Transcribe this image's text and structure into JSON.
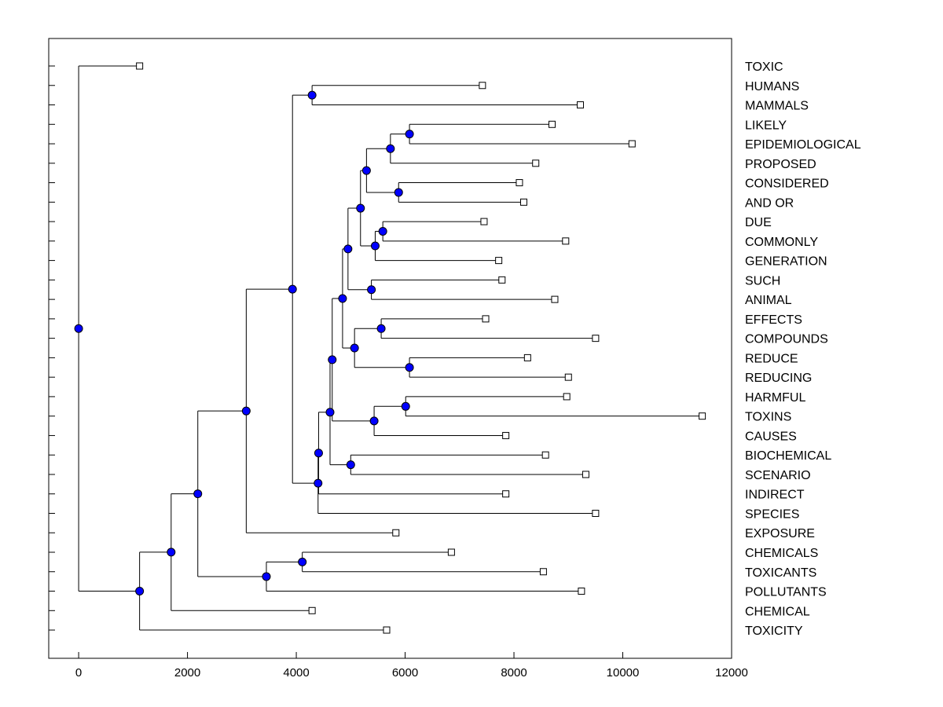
{
  "chart_data": {
    "type": "dendrogram",
    "title": "",
    "xlabel": "",
    "ylabel": "",
    "xlim": [
      -550,
      12000
    ],
    "xticks": [
      0,
      2000,
      4000,
      6000,
      8000,
      10000,
      12000
    ],
    "colors": {
      "node": "#0000ff",
      "line": "#000000",
      "leaf_fill": "#ffffff"
    },
    "leaves": [
      {
        "label": "TOXIC",
        "x": 1120
      },
      {
        "label": "HUMANS",
        "x": 7420
      },
      {
        "label": "MAMMALS",
        "x": 9220
      },
      {
        "label": "LIKELY",
        "x": 8700
      },
      {
        "label": "EPIDEMIOLOGICAL",
        "x": 10170
      },
      {
        "label": "PROPOSED",
        "x": 8400
      },
      {
        "label": "CONSIDERED",
        "x": 8100
      },
      {
        "label": "AND OR",
        "x": 8180
      },
      {
        "label": "DUE",
        "x": 7450
      },
      {
        "label": "COMMONLY",
        "x": 8950
      },
      {
        "label": "GENERATION",
        "x": 7720
      },
      {
        "label": "SUCH",
        "x": 7780
      },
      {
        "label": "ANIMAL",
        "x": 8750
      },
      {
        "label": "EFFECTS",
        "x": 7480
      },
      {
        "label": "COMPOUNDS",
        "x": 9500
      },
      {
        "label": "REDUCE",
        "x": 8250
      },
      {
        "label": "REDUCING",
        "x": 9000
      },
      {
        "label": "HARMFUL",
        "x": 8970
      },
      {
        "label": "TOXINS",
        "x": 11460
      },
      {
        "label": "CAUSES",
        "x": 7850
      },
      {
        "label": "BIOCHEMICAL",
        "x": 8580
      },
      {
        "label": "SCENARIO",
        "x": 9320
      },
      {
        "label": "INDIRECT",
        "x": 7850
      },
      {
        "label": "SPECIES",
        "x": 9500
      },
      {
        "label": "EXPOSURE",
        "x": 5830
      },
      {
        "label": "CHEMICALS",
        "x": 6850
      },
      {
        "label": "TOXICANTS",
        "x": 8540
      },
      {
        "label": "POLLUTANTS",
        "x": 9240
      },
      {
        "label": "CHEMICAL",
        "x": 4290
      },
      {
        "label": "TOXICITY",
        "x": 5660
      }
    ],
    "merges": [
      {
        "id": "m1",
        "x": 4290,
        "children": [
          "HUMANS",
          "MAMMALS"
        ]
      },
      {
        "id": "m2",
        "x": 6080,
        "children": [
          "LIKELY",
          "EPIDEMIOLOGICAL"
        ]
      },
      {
        "id": "m3",
        "x": 5730,
        "children": [
          "m2",
          "PROPOSED"
        ]
      },
      {
        "id": "m4",
        "x": 5880,
        "children": [
          "CONSIDERED",
          "AND OR"
        ]
      },
      {
        "id": "m5",
        "x": 5290,
        "children": [
          "m3",
          "m4"
        ]
      },
      {
        "id": "m6",
        "x": 5590,
        "children": [
          "DUE",
          "COMMONLY"
        ]
      },
      {
        "id": "m7",
        "x": 5450,
        "children": [
          "m6",
          "GENERATION"
        ]
      },
      {
        "id": "m8",
        "x": 5180,
        "children": [
          "m5",
          "m7"
        ]
      },
      {
        "id": "m9",
        "x": 5380,
        "children": [
          "SUCH",
          "ANIMAL"
        ]
      },
      {
        "id": "m10",
        "x": 4950,
        "children": [
          "m8",
          "m9"
        ]
      },
      {
        "id": "m11",
        "x": 5560,
        "children": [
          "EFFECTS",
          "COMPOUNDS"
        ]
      },
      {
        "id": "m12",
        "x": 6080,
        "children": [
          "REDUCE",
          "REDUCING"
        ]
      },
      {
        "id": "m13",
        "x": 5070,
        "children": [
          "m11",
          "m12"
        ]
      },
      {
        "id": "m14",
        "x": 4850,
        "children": [
          "m10",
          "m13"
        ]
      },
      {
        "id": "m15",
        "x": 6010,
        "children": [
          "HARMFUL",
          "TOXINS"
        ]
      },
      {
        "id": "m16",
        "x": 5430,
        "children": [
          "m15",
          "CAUSES"
        ]
      },
      {
        "id": "m17",
        "x": 4660,
        "children": [
          "m14",
          "m16"
        ]
      },
      {
        "id": "m18",
        "x": 5000,
        "children": [
          "BIOCHEMICAL",
          "SCENARIO"
        ]
      },
      {
        "id": "m19",
        "x": 4620,
        "children": [
          "m17",
          "m18"
        ]
      },
      {
        "id": "m20",
        "x": 4410,
        "children": [
          "m19",
          "INDIRECT"
        ]
      },
      {
        "id": "m21",
        "x": 4400,
        "children": [
          "m20",
          "SPECIES"
        ]
      },
      {
        "id": "m22",
        "x": 3930,
        "children": [
          "m1",
          "m21"
        ]
      },
      {
        "id": "m23",
        "x": 3080,
        "children": [
          "m22",
          "EXPOSURE"
        ]
      },
      {
        "id": "m24",
        "x": 4110,
        "children": [
          "CHEMICALS",
          "TOXICANTS"
        ]
      },
      {
        "id": "m25",
        "x": 3450,
        "children": [
          "m24",
          "POLLUTANTS"
        ]
      },
      {
        "id": "m26",
        "x": 2190,
        "children": [
          "m23",
          "m25"
        ]
      },
      {
        "id": "m27",
        "x": 1700,
        "children": [
          "m26",
          "CHEMICAL"
        ]
      },
      {
        "id": "m28",
        "x": 1120,
        "children": [
          "m27",
          "TOXICITY"
        ]
      },
      {
        "id": "m29",
        "x": 0,
        "children": [
          "TOXIC",
          "m28"
        ]
      }
    ]
  }
}
